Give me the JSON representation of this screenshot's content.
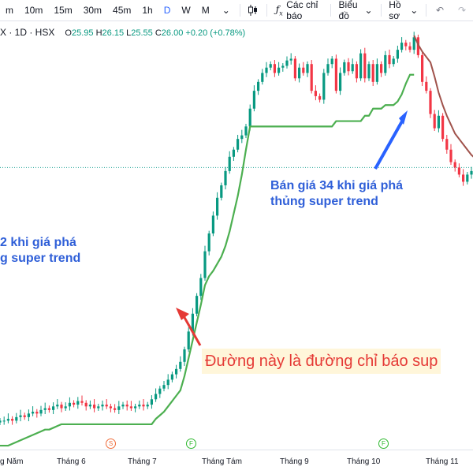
{
  "toolbar": {
    "intervals": [
      "m",
      "10m",
      "15m",
      "30m",
      "45m",
      "1h",
      "D",
      "W",
      "M"
    ],
    "active_interval": "D",
    "indicators_label": "Các chỉ báo",
    "indicators_icon": "fx-icon",
    "chart_type_icon": "candlestick-icon",
    "chart_label": "Biểu đồ",
    "profile_label": "Hồ sơ",
    "undo_icon": "undo-icon",
    "redo_icon": "redo-icon",
    "dropdown_icon": "chevron-down-icon"
  },
  "legend": {
    "symbol": "X · 1D · HSX",
    "o_label": "O",
    "o_value": "25.95",
    "h_label": "H",
    "h_value": "26.15",
    "l_label": "L",
    "l_value": "25.55",
    "c_label": "C",
    "c_value": "26.00",
    "change": "+0.20 (+0.78%)"
  },
  "annotations": {
    "sell_line1": "Bán giá 34 khi giá phá",
    "sell_line2": "thủng super trend",
    "buy_line1": "2 khi giá phá",
    "buy_line2": "g super trend",
    "indicator_note": "Đường này là đường chỉ báo sup"
  },
  "markers": [
    {
      "letter": "S",
      "kind": "s"
    },
    {
      "letter": "F",
      "kind": "f"
    },
    {
      "letter": "F",
      "kind": "f"
    }
  ],
  "xaxis": [
    "g Năm",
    "Tháng 6",
    "Tháng 7",
    "Tháng Tám",
    "Tháng 9",
    "Tháng 10",
    "Tháng 11"
  ],
  "colors": {
    "up": "#089981",
    "down": "#f23645",
    "supertrend_up": "#4caf50",
    "supertrend_down": "#a0524b",
    "arrow_blue": "#2962ff",
    "arrow_red": "#e53935",
    "annotation_blue": "#2f5fd8"
  },
  "chart_data": {
    "type": "candlestick",
    "ylim": [
      11,
      34
    ],
    "closes": [
      12,
      12,
      12.1,
      12,
      12.2,
      12.3,
      12.2,
      12.4,
      12.5,
      12.4,
      12.6,
      12.7,
      12.6,
      12.8,
      12.9,
      12.7,
      12.8,
      13,
      12.9,
      13.1,
      13,
      12.8,
      12.9,
      12.7,
      12.8,
      12.9,
      12.8,
      12.7,
      12.6,
      12.8,
      12.9,
      12.8,
      12.7,
      12.8,
      12.9,
      12.8,
      12.9,
      13.2,
      13.5,
      13.8,
      14,
      14.3,
      14.6,
      14.9,
      15.3,
      16,
      17,
      18,
      19,
      20,
      21.5,
      22.5,
      23.5,
      24.5,
      25.2,
      26,
      26.8,
      27.2,
      27.8,
      28,
      28.5,
      29.5,
      30.5,
      31,
      31.5,
      31.8,
      32,
      31.5,
      31.8,
      31.9,
      32.2,
      32.3,
      31.2,
      31.8,
      31.5,
      32,
      30.5,
      30.2,
      30,
      31.5,
      32,
      32.3,
      30.5,
      31.5,
      32.1,
      31.6,
      32,
      31.2,
      32.6,
      31.2,
      32,
      31,
      32,
      31.5,
      32.5,
      32,
      32.3,
      32.8,
      33.2,
      33,
      32.8,
      33.5,
      32.5,
      31,
      30.5,
      29.2,
      28.4,
      29.1,
      27.8,
      27.2,
      26.5,
      26.2,
      25.8,
      25.4,
      25.8,
      26,
      26.2
    ],
    "supertrend_up": [
      10.6,
      10.6,
      10.6,
      10.7,
      10.8,
      10.9,
      11,
      11.1,
      11.2,
      11.3,
      11.4,
      11.5,
      11.5,
      11.6,
      11.7,
      11.8,
      11.8,
      11.8,
      11.8,
      11.8,
      11.8,
      11.8,
      11.8,
      11.8,
      11.8,
      11.8,
      11.8,
      11.8,
      11.8,
      11.8,
      11.8,
      11.8,
      11.8,
      11.8,
      11.8,
      11.8,
      11.8,
      11.8,
      12.1,
      12.3,
      12.5,
      12.8,
      13.1,
      13.4,
      13.7,
      14.5,
      15.5,
      16.5,
      17.5,
      18.5,
      19.6,
      20.1,
      20.4,
      20.8,
      21.2,
      21.8,
      22.6,
      23.6,
      24.6,
      25.8,
      27.2,
      28.5,
      28.5,
      28.5,
      28.5,
      28.5,
      28.5,
      28.5,
      28.5,
      28.5,
      28.5,
      28.5,
      28.5,
      28.5,
      28.5,
      28.5,
      28.5,
      28.5,
      28.5,
      28.5,
      28.5,
      28.5,
      28.8,
      28.8,
      28.8,
      28.8,
      28.8,
      28.8,
      28.8,
      29.1,
      29.1,
      29.5,
      29.5,
      29.5,
      29.7,
      29.7,
      29.7,
      29.9,
      30.3,
      30.9,
      31.4,
      31.4
    ],
    "supertrend_down": [
      33.6,
      33.1,
      32.7,
      32.4,
      32.1,
      31.3,
      30.4,
      29.7,
      29.1,
      28.6,
      28.1,
      27.8,
      27.5,
      27.2,
      26.9,
      26.7,
      26.6,
      26.6,
      26.6
    ],
    "supertrend_down_start_index": 101
  }
}
